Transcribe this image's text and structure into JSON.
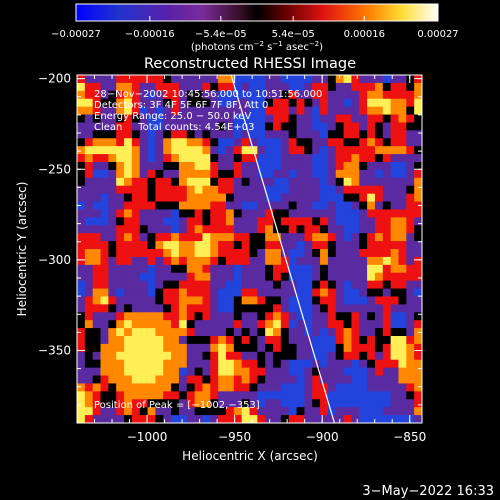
{
  "chart_data": {
    "type": "heatmap",
    "title": "Reconstructed RHESSI Image",
    "xlabel": "Heliocentric X (arcsec)",
    "ylabel": "Heliocentric Y (arcsec)",
    "xlim": [
      -1040,
      -843
    ],
    "ylim": [
      -390,
      -198
    ],
    "xticks": [
      -1000,
      -950,
      -900,
      -850
    ],
    "xtick_labels": [
      "−1000",
      "−950",
      "−900",
      "−850"
    ],
    "yticks": [
      -200,
      -250,
      -300,
      -350
    ],
    "ytick_labels": [
      "−200",
      "−250",
      "−300",
      "−350"
    ],
    "colorbar": {
      "min": -0.00027,
      "max": 0.00027,
      "ticks": [
        -0.00027,
        -0.00016,
        -5.4e-05,
        5.4e-05,
        0.00016,
        0.00027
      ],
      "tick_labels": [
        "−0.00027",
        "−0.00016",
        "−5.4e−05",
        "5.4e−05",
        "0.00016",
        "0.00027"
      ],
      "unit_parts": [
        "(photons cm",
        "−2",
        " s",
        "−1",
        " asec",
        "−2",
        ")"
      ]
    },
    "annotations": [
      "28−Nov−2002 10:45:56.000 to 10:51:56.000",
      "Detectors: 3F 4F 5F 6F 7F 8F, Att 0",
      "Energy Range: 25.0 − 50.0 keV",
      "Clean     Total counts: 4.54E+03"
    ],
    "peak_label": "Position of Peak = [−1002,−353]",
    "peak": [
      -1002,
      -353
    ],
    "limb_line": [
      [
        -952,
        -198
      ],
      [
        -893,
        -390
      ]
    ],
    "colors": {
      "background": "#000000",
      "violet": "#5a2aa0",
      "blue": "#2244dd",
      "red": "#ee1111",
      "orange": "#ff8800",
      "yellow": "#ffee55"
    }
  },
  "footer": {
    "date": "3−May−2022 16:33"
  }
}
